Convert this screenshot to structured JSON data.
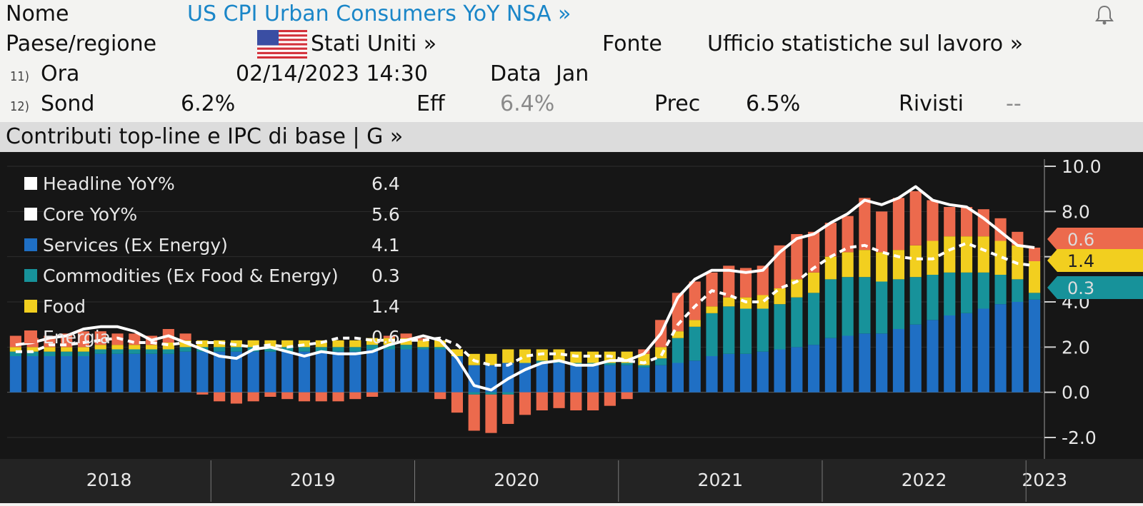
{
  "header": {
    "name_label": "Nome",
    "title": "US CPI Urban Consumers YoY NSA »",
    "country_label": "Paese/regione",
    "country": "Stati Uniti »",
    "source_label": "Fonte",
    "source": "Ufficio statistiche sul lavoro »",
    "row11_num": "11)",
    "time_label": "Ora",
    "time_value": "02/14/2023 14:30",
    "date_label": "Data",
    "date_value": "Jan",
    "row12_num": "12)",
    "survey_label": "Sond",
    "survey_value": "6.2%",
    "actual_label": "Eff",
    "actual_value": "6.4%",
    "prior_label": "Prec",
    "prior_value": "6.5%",
    "revised_label": "Rivisti",
    "revised_value": "--"
  },
  "subtitle": "Contributi top-line e IPC di base | G »",
  "colors": {
    "background": "#161616",
    "services": "#1f6fc4",
    "commodities": "#17929a",
    "food": "#f2cf1f",
    "energy": "#ec6a4d",
    "headline": "#ffffff",
    "core": "#ffffff",
    "link": "#1a86c8"
  },
  "chart_data": {
    "type": "bar",
    "stacked": true,
    "x": [
      "2018-01",
      "2018-02",
      "2018-03",
      "2018-04",
      "2018-05",
      "2018-06",
      "2018-07",
      "2018-08",
      "2018-09",
      "2018-10",
      "2018-11",
      "2018-12",
      "2019-01",
      "2019-02",
      "2019-03",
      "2019-04",
      "2019-05",
      "2019-06",
      "2019-07",
      "2019-08",
      "2019-09",
      "2019-10",
      "2019-11",
      "2019-12",
      "2020-01",
      "2020-02",
      "2020-03",
      "2020-04",
      "2020-05",
      "2020-06",
      "2020-07",
      "2020-08",
      "2020-09",
      "2020-10",
      "2020-11",
      "2020-12",
      "2021-01",
      "2021-02",
      "2021-03",
      "2021-04",
      "2021-05",
      "2021-06",
      "2021-07",
      "2021-08",
      "2021-09",
      "2021-10",
      "2021-11",
      "2021-12",
      "2022-01",
      "2022-02",
      "2022-03",
      "2022-04",
      "2022-05",
      "2022-06",
      "2022-07",
      "2022-08",
      "2022-09",
      "2022-10",
      "2022-11",
      "2022-12",
      "2023-01"
    ],
    "x_tick_labels": [
      "2018",
      "2019",
      "2020",
      "2021",
      "2022",
      "2023"
    ],
    "ylim": [
      -2.0,
      10.0
    ],
    "y_ticks": [
      "10.0",
      "8.0",
      "6.0",
      "4.0",
      "2.0",
      "0.0",
      "-2.0"
    ],
    "legend": {
      "position": "top-left",
      "entries": [
        {
          "name": "Headline YoY%",
          "value": "6.4"
        },
        {
          "name": "Core YoY%",
          "value": "5.6"
        },
        {
          "name": "Services (Ex Energy)",
          "value": "4.1"
        },
        {
          "name": "Commodities (Ex Food & Energy)",
          "value": "0.3"
        },
        {
          "name": "Food",
          "value": "1.4"
        },
        {
          "name": "Energia",
          "value": "0.6"
        }
      ]
    },
    "right_tags": [
      "0.6",
      "1.4",
      "0.3"
    ],
    "series": [
      {
        "name": "Services (Ex Energy)",
        "values": [
          1.6,
          1.6,
          1.6,
          1.6,
          1.6,
          1.7,
          1.7,
          1.7,
          1.7,
          1.7,
          1.8,
          1.8,
          1.8,
          1.8,
          1.8,
          1.8,
          1.8,
          1.8,
          1.8,
          1.8,
          1.8,
          1.9,
          1.9,
          1.9,
          1.9,
          1.9,
          1.6,
          1.2,
          1.2,
          1.3,
          1.3,
          1.3,
          1.3,
          1.2,
          1.2,
          1.2,
          1.2,
          1.1,
          1.2,
          1.3,
          1.4,
          1.6,
          1.7,
          1.7,
          1.8,
          1.9,
          2.0,
          2.1,
          2.4,
          2.5,
          2.6,
          2.6,
          2.8,
          3.0,
          3.2,
          3.4,
          3.5,
          3.7,
          3.9,
          4.0,
          4.1
        ]
      },
      {
        "name": "Commodities (Ex Food & Energy)",
        "values": [
          0.2,
          0.2,
          0.2,
          0.2,
          0.2,
          0.2,
          0.2,
          0.2,
          0.2,
          0.2,
          0.2,
          0.2,
          0.2,
          0.2,
          0.2,
          0.2,
          0.2,
          0.2,
          0.2,
          0.2,
          0.2,
          0.2,
          0.2,
          0.2,
          0.1,
          0.1,
          0.0,
          -0.1,
          -0.1,
          -0.1,
          0.0,
          0.1,
          0.1,
          0.1,
          0.1,
          0.1,
          0.1,
          0.1,
          0.3,
          1.1,
          1.5,
          1.9,
          2.1,
          2.0,
          1.9,
          2.0,
          2.2,
          2.3,
          2.6,
          2.6,
          2.5,
          2.3,
          2.2,
          2.1,
          2.0,
          1.9,
          1.8,
          1.6,
          1.3,
          1.0,
          0.3
        ]
      },
      {
        "name": "Food",
        "values": [
          0.2,
          0.2,
          0.2,
          0.2,
          0.2,
          0.2,
          0.2,
          0.2,
          0.2,
          0.3,
          0.3,
          0.3,
          0.3,
          0.3,
          0.3,
          0.3,
          0.3,
          0.3,
          0.3,
          0.3,
          0.3,
          0.3,
          0.3,
          0.3,
          0.3,
          0.3,
          0.3,
          0.5,
          0.5,
          0.6,
          0.6,
          0.5,
          0.5,
          0.5,
          0.5,
          0.5,
          0.5,
          0.5,
          0.5,
          0.3,
          0.3,
          0.3,
          0.4,
          0.5,
          0.6,
          0.7,
          0.8,
          0.9,
          1.0,
          1.1,
          1.2,
          1.3,
          1.3,
          1.4,
          1.5,
          1.6,
          1.6,
          1.6,
          1.5,
          1.5,
          1.4
        ]
      },
      {
        "name": "Energia",
        "values": [
          0.5,
          0.4,
          0.5,
          0.6,
          0.7,
          0.6,
          0.5,
          0.5,
          0.4,
          0.6,
          0.3,
          -0.1,
          -0.4,
          -0.5,
          -0.4,
          -0.2,
          -0.3,
          -0.4,
          -0.4,
          -0.4,
          -0.3,
          -0.2,
          0.1,
          0.2,
          0.1,
          -0.3,
          -0.9,
          -1.6,
          -1.7,
          -1.3,
          -1.0,
          -0.8,
          -0.7,
          -0.8,
          -0.8,
          -0.6,
          -0.3,
          0.2,
          1.2,
          1.7,
          1.7,
          1.5,
          1.4,
          1.3,
          1.3,
          1.9,
          2.0,
          1.8,
          1.5,
          1.6,
          2.3,
          1.8,
          2.3,
          2.4,
          1.8,
          1.3,
          1.3,
          1.2,
          1.0,
          0.6,
          0.6
        ]
      }
    ],
    "lines": [
      {
        "name": "Headline YoY%",
        "values": [
          2.1,
          2.2,
          2.4,
          2.5,
          2.8,
          2.9,
          2.9,
          2.7,
          2.3,
          2.5,
          2.2,
          1.9,
          1.6,
          1.5,
          1.9,
          2.0,
          1.8,
          1.6,
          1.8,
          1.7,
          1.7,
          1.8,
          2.1,
          2.3,
          2.5,
          2.3,
          1.5,
          0.3,
          0.1,
          0.6,
          1.0,
          1.3,
          1.4,
          1.2,
          1.2,
          1.4,
          1.4,
          1.7,
          2.6,
          4.2,
          5.0,
          5.4,
          5.4,
          5.3,
          5.4,
          6.2,
          6.8,
          7.0,
          7.5,
          7.9,
          8.5,
          8.3,
          8.6,
          9.1,
          8.5,
          8.3,
          8.2,
          7.7,
          7.1,
          6.5,
          6.4
        ]
      },
      {
        "name": "Core YoY%",
        "values": [
          1.8,
          1.8,
          2.1,
          2.1,
          2.2,
          2.3,
          2.4,
          2.2,
          2.2,
          2.1,
          2.2,
          2.2,
          2.2,
          2.1,
          2.0,
          2.1,
          2.0,
          2.1,
          2.2,
          2.4,
          2.4,
          2.3,
          2.3,
          2.3,
          2.3,
          2.4,
          2.1,
          1.4,
          1.2,
          1.2,
          1.6,
          1.7,
          1.7,
          1.6,
          1.6,
          1.6,
          1.4,
          1.3,
          1.6,
          3.0,
          3.8,
          4.5,
          4.3,
          4.0,
          4.0,
          4.6,
          4.9,
          5.5,
          6.0,
          6.4,
          6.5,
          6.2,
          6.0,
          5.9,
          5.9,
          6.3,
          6.6,
          6.3,
          6.0,
          5.7,
          5.6
        ]
      }
    ]
  }
}
